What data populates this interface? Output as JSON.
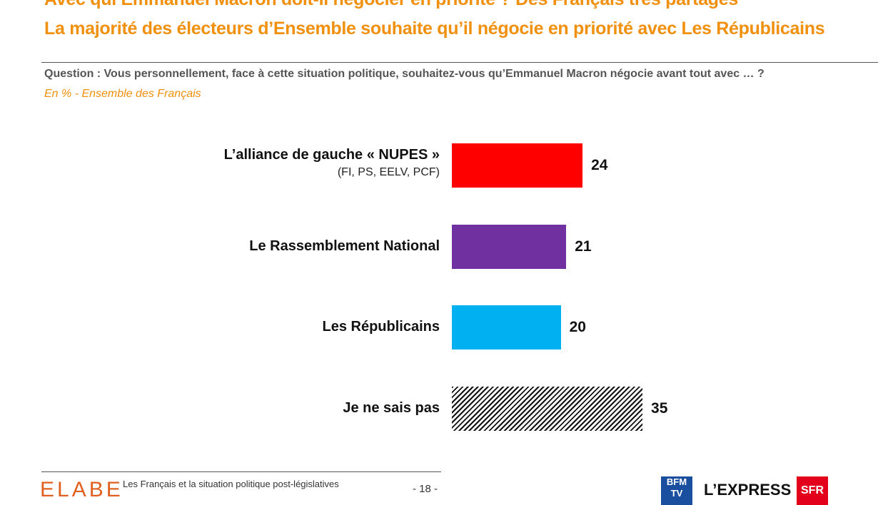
{
  "title_line1": "Avec qui Emmanuel Macron doit-il négocier en priorité ? Des Français très partagés",
  "title_line2": "La majorité des électeurs d’Ensemble souhaite qu’il négocie en priorité avec Les Républicains",
  "question": "Question : Vous personnellement, face à cette situation politique, souhaitez-vous qu’Emmanuel Macron négocie avant tout avec … ?",
  "subtitle": "En % - Ensemble des Français",
  "chart_data": {
    "type": "bar",
    "orientation": "horizontal",
    "unit": "%",
    "categories": [
      "L’alliance de gauche « NUPES »",
      "Le Rassemblement National",
      "Les Républicains",
      "Je ne sais pas"
    ],
    "category_sublabels": [
      "(FI, PS, EELV, PCF)",
      "",
      "",
      ""
    ],
    "values": [
      24,
      21,
      20,
      35
    ],
    "colors": [
      "#FF0000",
      "#7030A0",
      "#00B0F0",
      "hatched-black"
    ],
    "grid": false
  },
  "footer": {
    "brand": "ELABE",
    "text": "Les Français et la situation politique post-législatives",
    "page": "- 18 -",
    "partners": [
      "BFM TV",
      "L’EXPRESS",
      "SFR"
    ]
  }
}
